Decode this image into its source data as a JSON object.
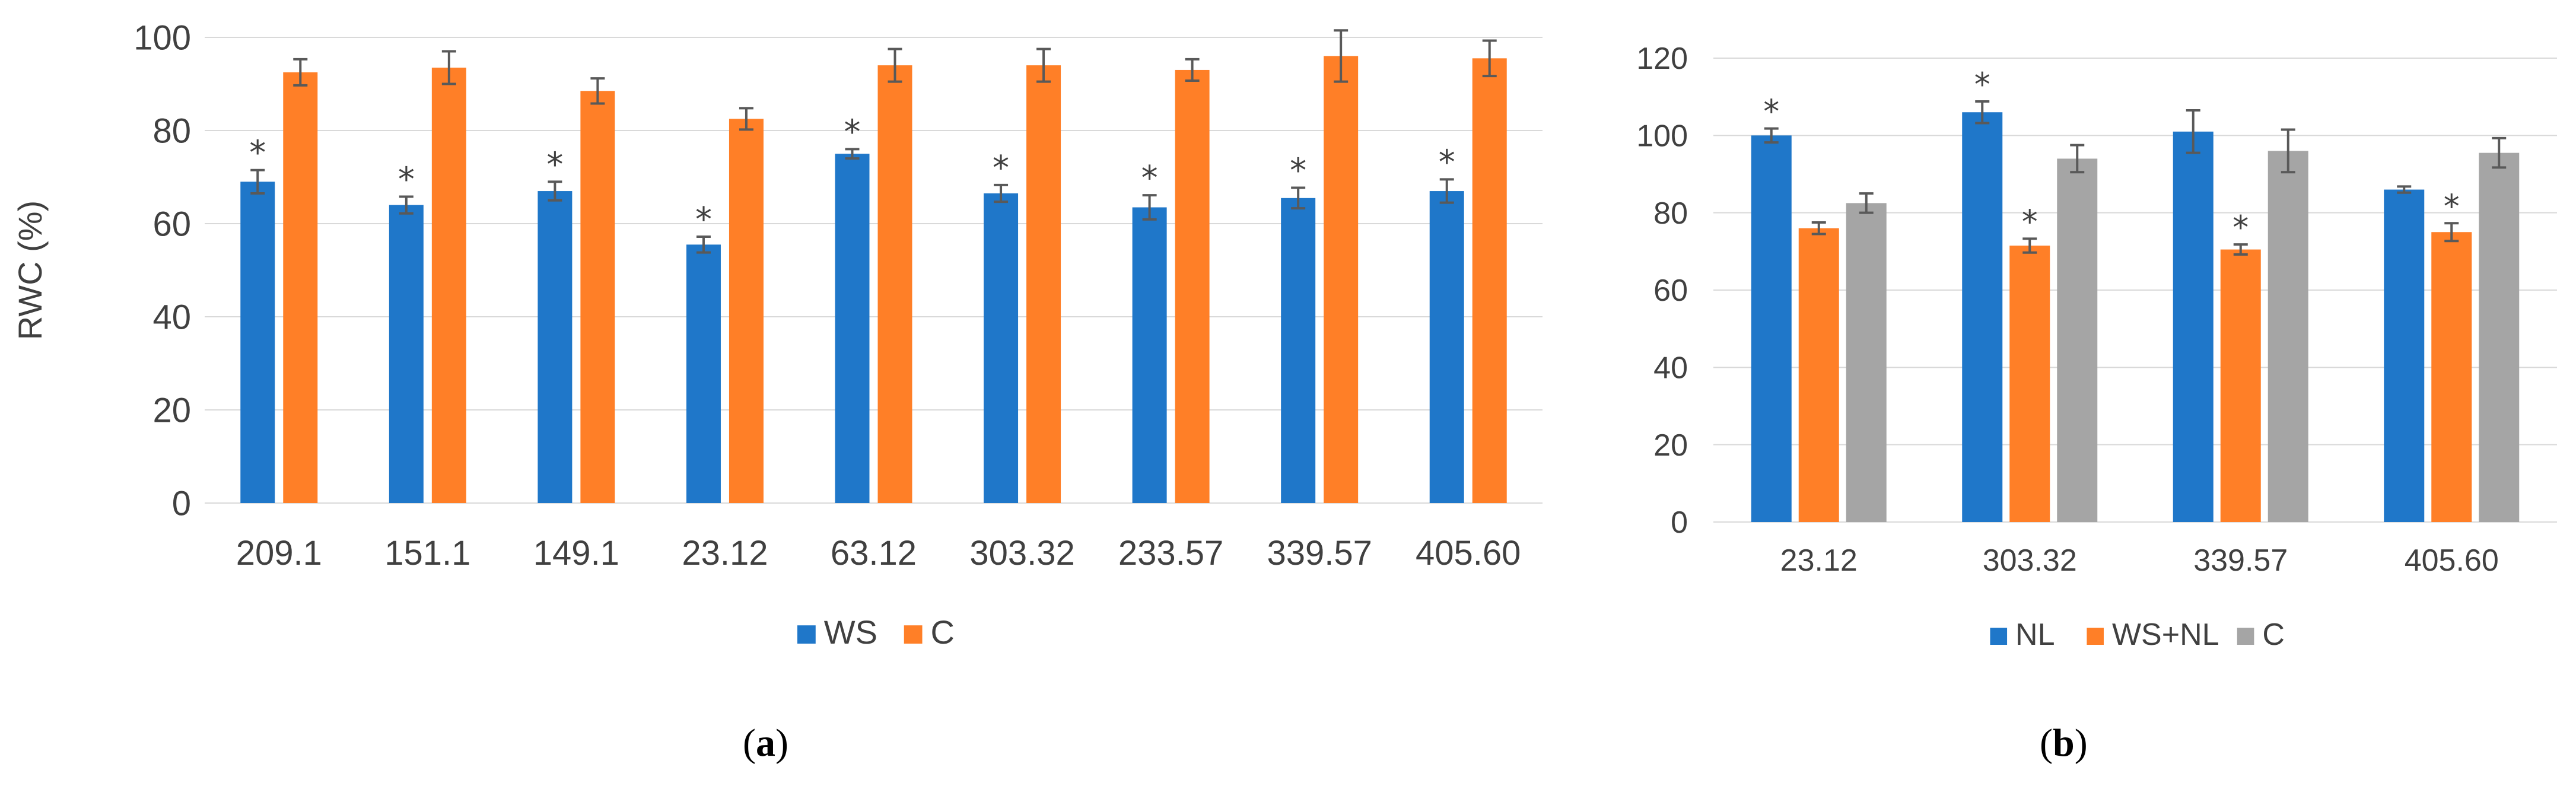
{
  "chart_data": [
    {
      "id": "a",
      "type": "bar",
      "ylabel": "RWC (%)",
      "ylim": [
        0,
        100
      ],
      "yticks": [
        0,
        20,
        40,
        60,
        80,
        100
      ],
      "grid": true,
      "legend_position": "bottom",
      "categories": [
        "209.1",
        "151.1",
        "149.1",
        "23.12",
        "63.12",
        "303.32",
        "233.57",
        "339.57",
        "405.60"
      ],
      "series": [
        {
          "name": "WS",
          "color": "#1f77c9",
          "values": [
            69,
            64,
            67,
            55.5,
            75,
            66.5,
            63.5,
            65.5,
            67
          ],
          "errors": [
            2.5,
            1.8,
            2.0,
            1.7,
            1.0,
            1.8,
            2.6,
            2.2,
            2.5
          ],
          "significant": [
            true,
            true,
            true,
            true,
            true,
            true,
            true,
            true,
            true
          ]
        },
        {
          "name": "C",
          "color": "#ff7f27",
          "values": [
            92.5,
            93.5,
            88.5,
            82.5,
            94,
            94,
            93,
            96,
            95.5
          ],
          "errors": [
            2.8,
            3.5,
            2.7,
            2.3,
            3.5,
            3.5,
            2.3,
            5.5,
            3.8
          ],
          "significant": [
            false,
            false,
            false,
            false,
            false,
            false,
            false,
            false,
            false
          ]
        }
      ],
      "panel_label_left": "(",
      "panel_label_letter": "a",
      "panel_label_right": ")"
    },
    {
      "id": "b",
      "type": "bar",
      "ylabel": "",
      "ylim": [
        0,
        120
      ],
      "yticks": [
        0,
        20,
        40,
        60,
        80,
        100,
        120
      ],
      "grid": true,
      "legend_position": "bottom",
      "categories": [
        "23.12",
        "303.32",
        "339.57",
        "405.60"
      ],
      "series": [
        {
          "name": "NL",
          "color": "#1f77c9",
          "values": [
            100,
            106,
            101,
            86
          ],
          "errors": [
            1.8,
            2.8,
            5.5,
            0.8
          ],
          "significant": [
            true,
            true,
            false,
            false
          ]
        },
        {
          "name": "WS+NL",
          "color": "#ff7f27",
          "values": [
            76,
            71.5,
            70.5,
            75
          ],
          "errors": [
            1.5,
            1.8,
            1.3,
            2.3
          ],
          "significant": [
            false,
            true,
            true,
            true
          ]
        },
        {
          "name": "C",
          "color": "#a5a5a5",
          "values": [
            82.5,
            94,
            96,
            95.5
          ],
          "errors": [
            2.5,
            3.5,
            5.5,
            3.8
          ],
          "significant": [
            false,
            false,
            false,
            false
          ]
        }
      ],
      "panel_label_left": "(",
      "panel_label_letter": "b",
      "panel_label_right": ")"
    }
  ]
}
